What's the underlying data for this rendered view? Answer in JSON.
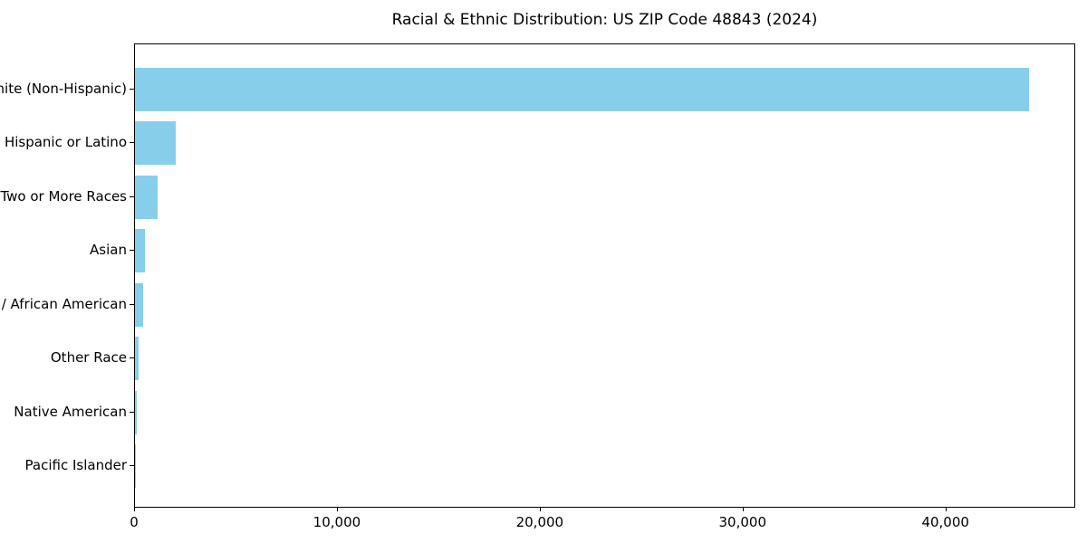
{
  "chart_data": {
    "type": "bar",
    "orientation": "horizontal",
    "title": "Racial & Ethnic Distribution: US ZIP Code 48843 (2024)",
    "categories": [
      "White (Non-Hispanic)",
      "Hispanic or Latino",
      "Two or More Races",
      "Asian",
      "Black / African American",
      "Other Race",
      "Native American",
      "Pacific Islander"
    ],
    "values": [
      44100,
      2000,
      1100,
      480,
      400,
      170,
      90,
      15
    ],
    "bar_color": "#87CEEB",
    "title_color": "#000000",
    "axis_color": "#000000",
    "xlabel": "",
    "ylabel": "",
    "xlim": [
      0,
      46400
    ],
    "xticks": [
      0,
      10000,
      20000,
      30000,
      40000
    ],
    "xtick_labels": [
      "0",
      "10,000",
      "20,000",
      "30,000",
      "40,000"
    ],
    "grid": false,
    "legend": "none",
    "value_axis": "bottom",
    "category_axis": "left"
  }
}
